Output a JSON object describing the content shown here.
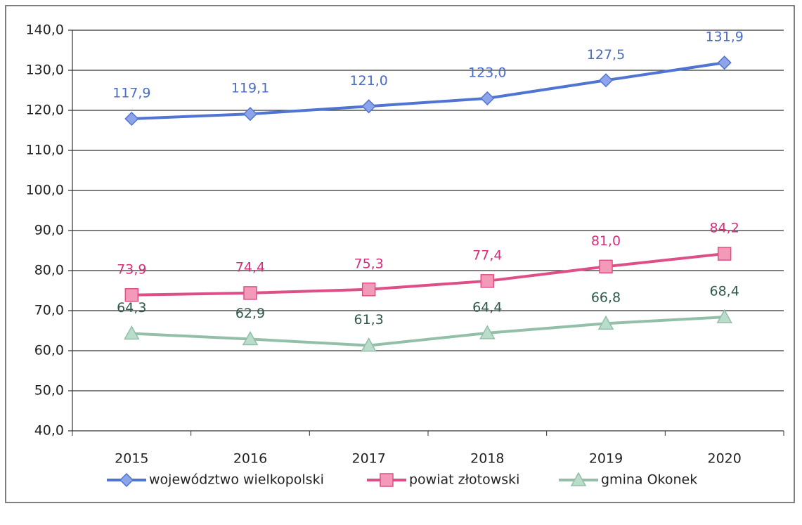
{
  "chart_data": {
    "type": "line",
    "categories": [
      "2015",
      "2016",
      "2017",
      "2018",
      "2019",
      "2020"
    ],
    "series": [
      {
        "name": "województwo wielkopolski",
        "color": "#4f74d2",
        "marker_color": "#8ea4ea",
        "label_color": "#4a6cc8",
        "marker": "diamond",
        "values": [
          117.9,
          119.1,
          121.0,
          123.0,
          127.5,
          131.9
        ],
        "value_labels": [
          "117,9",
          "119,1",
          "121,0",
          "123,0",
          "127,5",
          "131,9"
        ]
      },
      {
        "name": "powiat złotowski",
        "color": "#de4f88",
        "marker_color": "#f39ab8",
        "label_color": "#d3307a",
        "marker": "square",
        "values": [
          73.9,
          74.4,
          75.3,
          77.4,
          81.0,
          84.2
        ],
        "value_labels": [
          "73,9",
          "74,4",
          "75,3",
          "77,4",
          "81,0",
          "84,2"
        ]
      },
      {
        "name": "gmina Okonek",
        "color": "#93bfa9",
        "marker_color": "#b9dccb",
        "label_color": "#2f5a47",
        "marker": "triangle",
        "values": [
          64.3,
          62.9,
          61.3,
          64.4,
          66.8,
          68.4
        ],
        "value_labels": [
          "64,3",
          "62,9",
          "61,3",
          "64,4",
          "66,8",
          "68,4"
        ]
      }
    ],
    "ylim": [
      40,
      140
    ],
    "yticks": [
      {
        "value": 40,
        "label": "40,0"
      },
      {
        "value": 50,
        "label": "50,0"
      },
      {
        "value": 60,
        "label": "60,0"
      },
      {
        "value": 70,
        "label": "70,0"
      },
      {
        "value": 80,
        "label": "80,0"
      },
      {
        "value": 90,
        "label": "90,0"
      },
      {
        "value": 100,
        "label": "100,0"
      },
      {
        "value": 110,
        "label": "110,0"
      },
      {
        "value": 120,
        "label": "120,0"
      },
      {
        "value": 130,
        "label": "130,0"
      },
      {
        "value": 140,
        "label": "140,0"
      }
    ],
    "grid": true,
    "legend": "bottom"
  }
}
